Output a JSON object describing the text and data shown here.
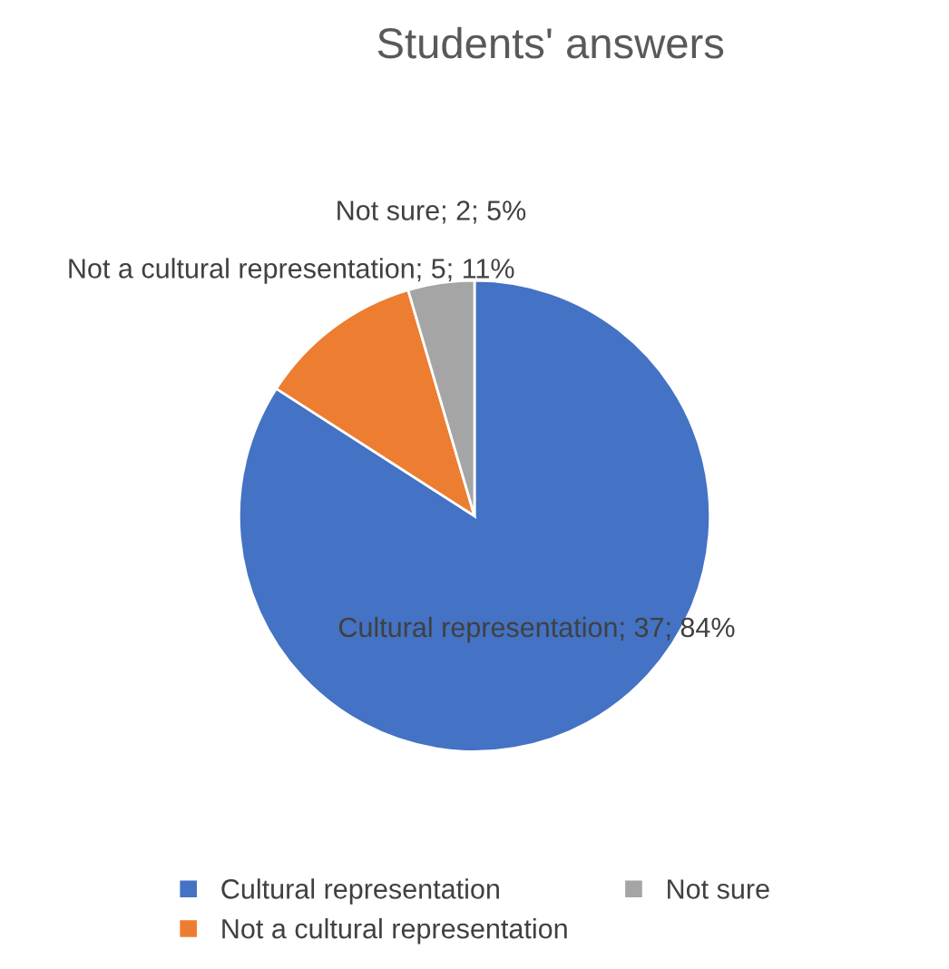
{
  "chart_data": {
    "type": "pie",
    "title": "Students' answers",
    "categories": [
      "Cultural representation",
      "Not a cultural representation",
      "Not sure"
    ],
    "values": [
      37,
      5,
      2
    ],
    "colors": [
      "#4472c4",
      "#ed7d31",
      "#a5a5a5"
    ],
    "value_labels": [
      "Cultural representation; 37; 84%",
      "Not a cultural representation; 5; 11%",
      "Not sure; 2; 5%"
    ],
    "legend": "bottom"
  }
}
